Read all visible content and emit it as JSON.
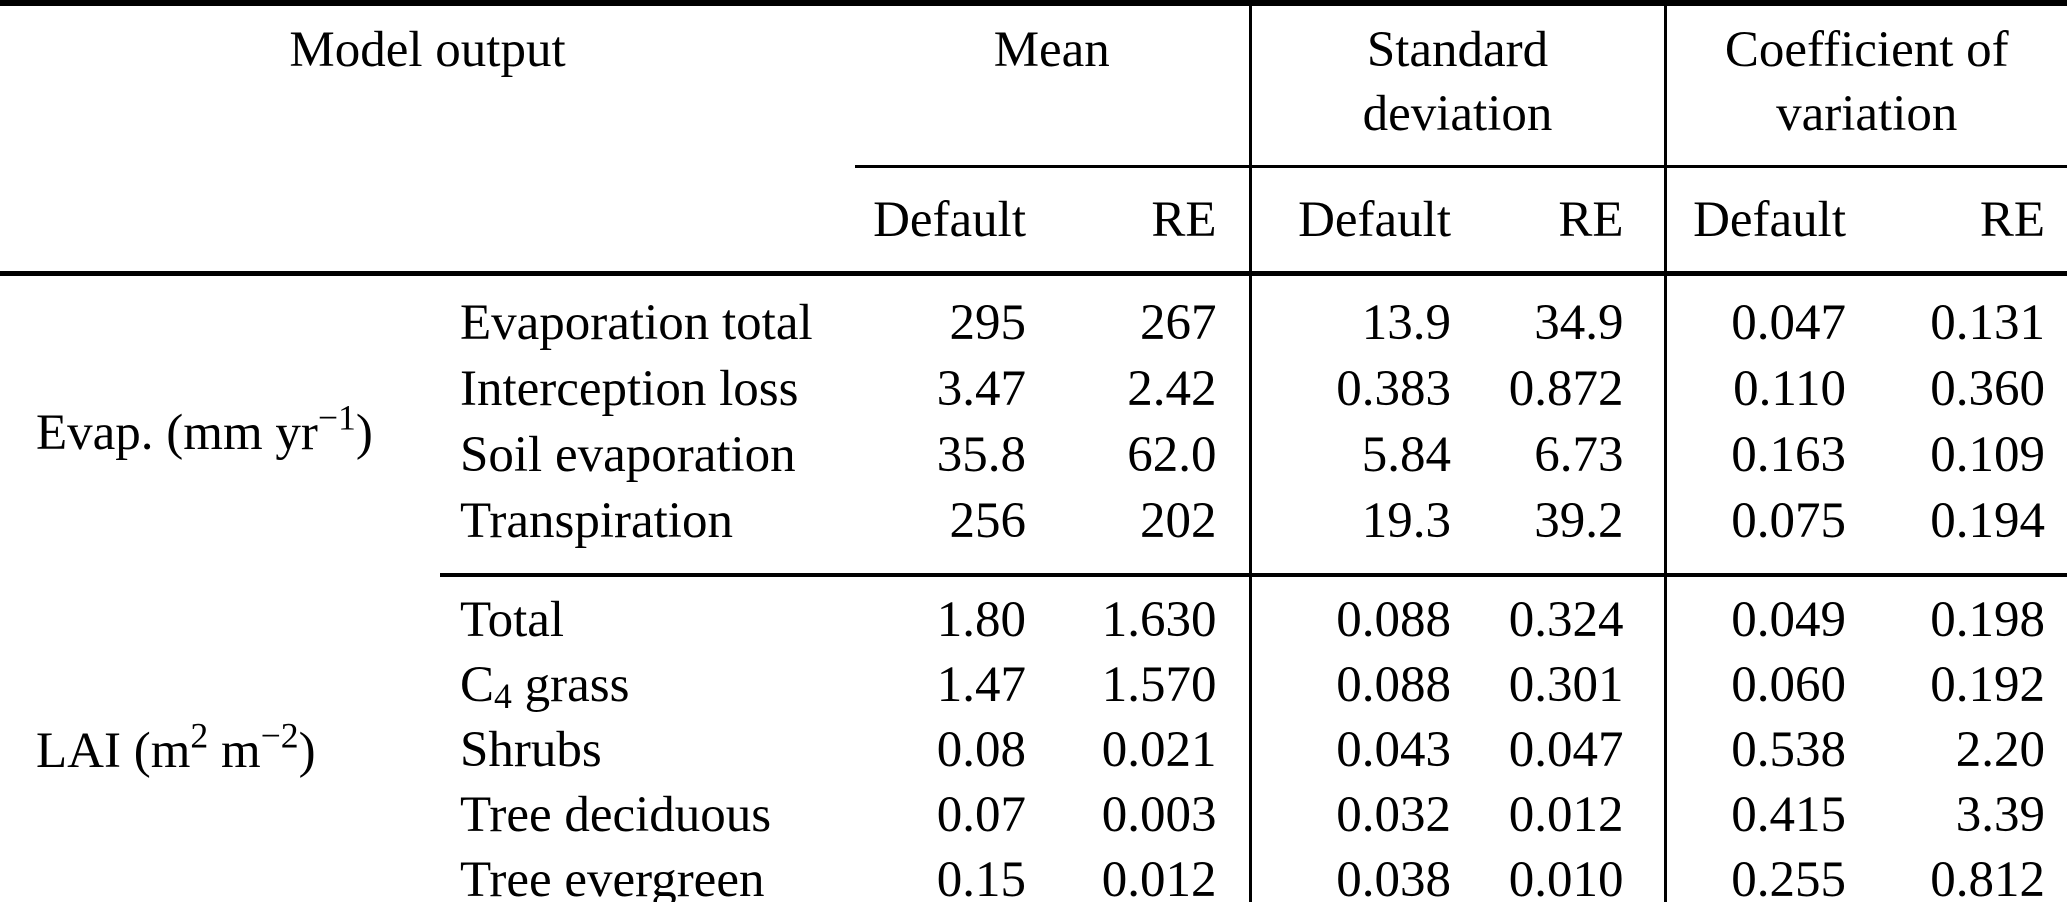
{
  "header": {
    "model_output": "Model output",
    "mean_line1": "Mean",
    "mean_line2": "",
    "sd_line1": "Standard",
    "sd_line2": "deviation",
    "cov_line1": "Coefficient of",
    "cov_line2": "variation",
    "default_label": "Default",
    "re_label": "RE"
  },
  "groups": [
    {
      "label": {
        "pre": "Evap. (mm yr",
        "sup1": "−1",
        "mid": ")",
        "sup2": "",
        "post": ""
      },
      "rows": [
        {
          "name": {
            "pre": "Evaporation total",
            "sub": "",
            "post": ""
          },
          "mean_default": "295",
          "mean_re": "267",
          "sd_default": "13.9",
          "sd_re": "34.9",
          "cov_default": "0.047",
          "cov_re": "0.131"
        },
        {
          "name": {
            "pre": "Interception loss",
            "sub": "",
            "post": ""
          },
          "mean_default": "3.47",
          "mean_re": "2.42",
          "sd_default": "0.383",
          "sd_re": "0.872",
          "cov_default": "0.110",
          "cov_re": "0.360"
        },
        {
          "name": {
            "pre": "Soil evaporation",
            "sub": "",
            "post": ""
          },
          "mean_default": "35.8",
          "mean_re": "62.0",
          "sd_default": "5.84",
          "sd_re": "6.73",
          "cov_default": "0.163",
          "cov_re": "0.109"
        },
        {
          "name": {
            "pre": "Transpiration",
            "sub": "",
            "post": ""
          },
          "mean_default": "256",
          "mean_re": "202",
          "sd_default": "19.3",
          "sd_re": "39.2",
          "cov_default": "0.075",
          "cov_re": "0.194"
        }
      ]
    },
    {
      "label": {
        "pre": "LAI (m",
        "sup1": "2",
        "mid": " m",
        "sup2": "−2",
        "post": ")"
      },
      "rows": [
        {
          "name": {
            "pre": "Total",
            "sub": "",
            "post": ""
          },
          "mean_default": "1.80",
          "mean_re": "1.630",
          "sd_default": "0.088",
          "sd_re": "0.324",
          "cov_default": "0.049",
          "cov_re": "0.198"
        },
        {
          "name": {
            "pre": "C",
            "sub": "4",
            "post": " grass"
          },
          "mean_default": "1.47",
          "mean_re": "1.570",
          "sd_default": "0.088",
          "sd_re": "0.301",
          "cov_default": "0.060",
          "cov_re": "0.192"
        },
        {
          "name": {
            "pre": "Shrubs",
            "sub": "",
            "post": ""
          },
          "mean_default": "0.08",
          "mean_re": "0.021",
          "sd_default": "0.043",
          "sd_re": "0.047",
          "cov_default": "0.538",
          "cov_re": "2.20"
        },
        {
          "name": {
            "pre": "Tree deciduous",
            "sub": "",
            "post": ""
          },
          "mean_default": "0.07",
          "mean_re": "0.003",
          "sd_default": "0.032",
          "sd_re": "0.012",
          "cov_default": "0.415",
          "cov_re": "3.39"
        },
        {
          "name": {
            "pre": "Tree evergreen",
            "sub": "",
            "post": ""
          },
          "mean_default": "0.15",
          "mean_re": "0.012",
          "sd_default": "0.038",
          "sd_re": "0.010",
          "cov_default": "0.255",
          "cov_re": "0.812"
        }
      ]
    }
  ]
}
